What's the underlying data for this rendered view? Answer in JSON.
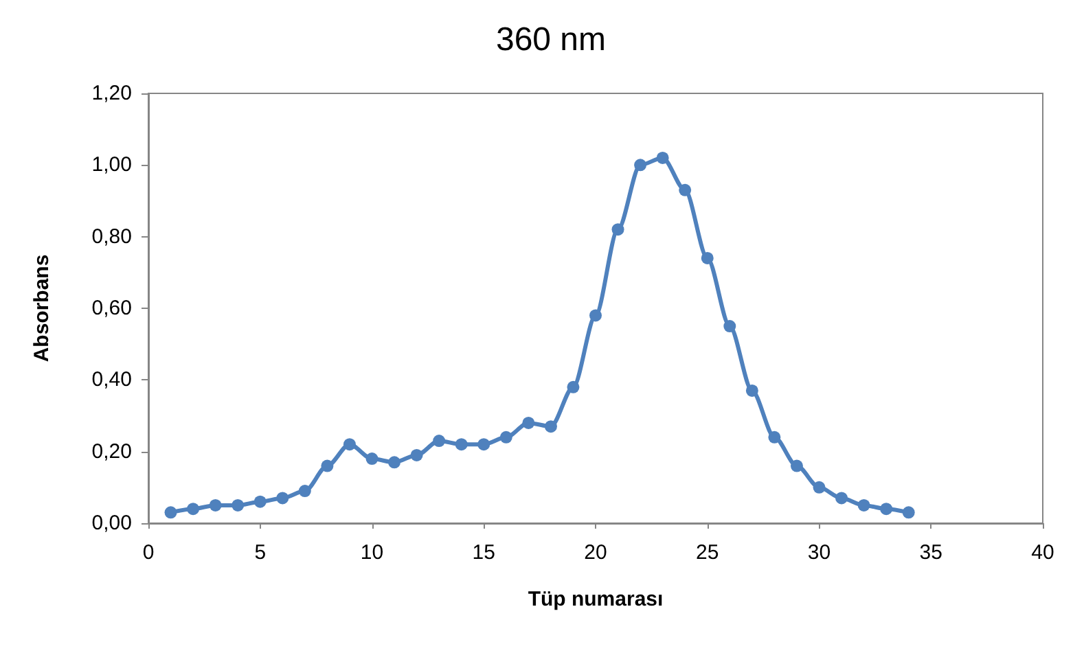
{
  "chart_data": {
    "type": "line",
    "title": "360 nm",
    "xlabel": "Tüp numarası",
    "ylabel": "Absorbans",
    "xlim": [
      0,
      40
    ],
    "xticks": [
      0,
      5,
      10,
      15,
      20,
      25,
      30,
      35,
      40
    ],
    "ylim": [
      0,
      1.2
    ],
    "yticks": [
      {
        "value": 0,
        "label": "0,00"
      },
      {
        "value": 0.2,
        "label": "0,20"
      },
      {
        "value": 0.4,
        "label": "0,40"
      },
      {
        "value": 0.6,
        "label": "0,60"
      },
      {
        "value": 0.8,
        "label": "0,80"
      },
      {
        "value": 1,
        "label": "1,00"
      },
      {
        "value": 1.2,
        "label": "1,20"
      }
    ],
    "x": [
      1,
      2,
      3,
      4,
      5,
      6,
      7,
      8,
      9,
      10,
      11,
      12,
      13,
      14,
      15,
      16,
      17,
      18,
      19,
      20,
      21,
      22,
      23,
      24,
      25,
      26,
      27,
      28,
      29,
      30,
      31,
      32,
      33,
      34
    ],
    "series": [
      {
        "color": "#4f81bd",
        "values": [
          0.03,
          0.04,
          0.05,
          0.05,
          0.06,
          0.07,
          0.09,
          0.16,
          0.22,
          0.18,
          0.17,
          0.19,
          0.23,
          0.22,
          0.22,
          0.24,
          0.28,
          0.27,
          0.38,
          0.58,
          0.82,
          1.0,
          1.02,
          0.93,
          0.74,
          0.55,
          0.37,
          0.24,
          0.16,
          0.1,
          0.07,
          0.05,
          0.04,
          0.03
        ]
      }
    ],
    "grid": false,
    "marker": "circle",
    "line_style": "solid"
  }
}
